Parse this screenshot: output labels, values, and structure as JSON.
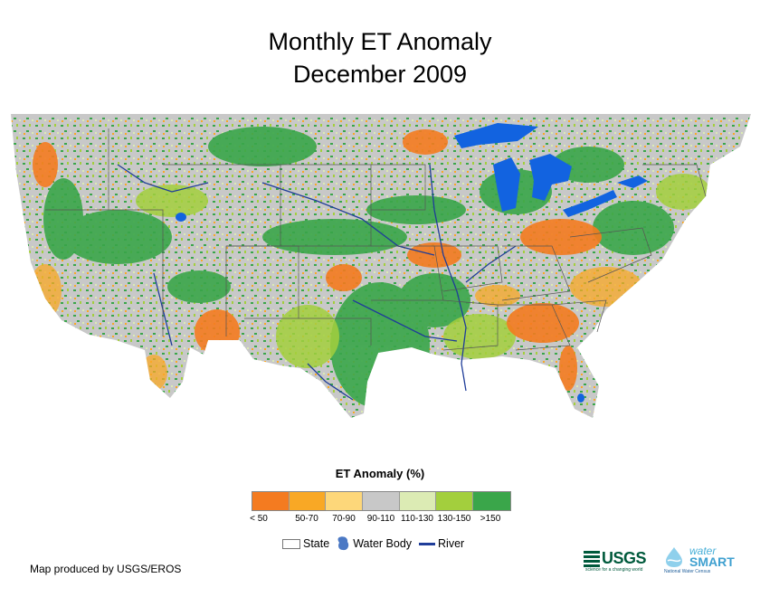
{
  "title": {
    "line1": "Monthly ET Anomaly",
    "line2": "December 2009"
  },
  "legend": {
    "title": "ET Anomaly (%)",
    "classes": [
      {
        "label": "< 50",
        "color": "#f47b20"
      },
      {
        "label": "50-70",
        "color": "#f9a825"
      },
      {
        "label": "70-90",
        "color": "#fdd77a"
      },
      {
        "label": "90-110",
        "color": "#c8c8c8"
      },
      {
        "label": "110-130",
        "color": "#dcebb4"
      },
      {
        "label": "130-150",
        "color": "#a3cf3d"
      },
      {
        "label": ">150",
        "color": "#3aa64a"
      }
    ]
  },
  "layers": {
    "state": "State",
    "water_body": "Water Body",
    "river": "River"
  },
  "colors": {
    "water": "#1263e0",
    "river": "#1f3d99",
    "state_border": "#555555",
    "no_data": "#c8c8c8"
  },
  "credit": "Map produced by USGS/EROS",
  "logos": {
    "usgs": "USGS",
    "usgs_tagline": "science for a changing world",
    "watersmart_top": "water",
    "watersmart_bottom": "SMART",
    "watersmart_tagline": "National Water Census"
  }
}
